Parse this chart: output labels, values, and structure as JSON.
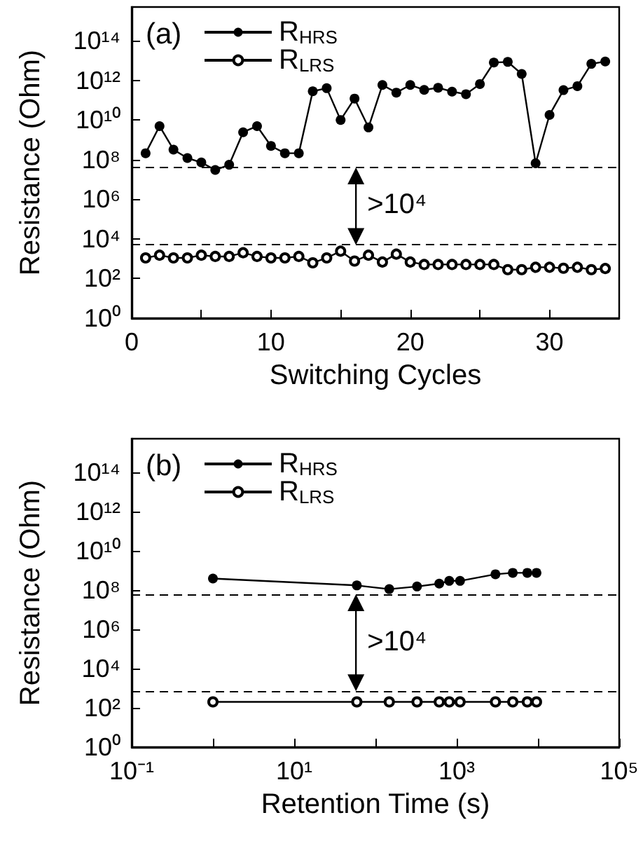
{
  "chart_data": [
    {
      "type": "line",
      "title": "(a)",
      "xlabel": "Switching Cycles",
      "ylabel": "Resistance (Ohm)",
      "x": [
        1,
        2,
        3,
        4,
        5,
        6,
        7,
        8,
        9,
        10,
        11,
        12,
        13,
        14,
        15,
        16,
        17,
        18,
        19,
        20,
        21,
        22,
        23,
        24,
        25,
        26,
        27,
        28,
        29,
        30,
        31,
        32,
        33,
        34
      ],
      "series": [
        {
          "name": "R$_{HRS}$",
          "color": "#000000",
          "values": [
            210000000.0,
            4900000000.0,
            320000000.0,
            120000000.0,
            72000000.0,
            30000000.0,
            55000000.0,
            2400000000.0,
            4900000000.0,
            490000000.0,
            210000000.0,
            210000000.0,
            280000000000.0,
            400000000000.0,
            10000000000.0,
            120000000000.0,
            4200000000.0,
            580000000000.0,
            240000000000.0,
            580000000000.0,
            330000000000.0,
            420000000000.0,
            270000000000.0,
            200000000000.0,
            650000000000.0,
            7900000000000.0,
            8500000000000.0,
            2100000000000.0,
            65000000.0,
            18000000000.0,
            320000000000.0,
            510000000000.0,
            6800000000000.0,
            8900000000000.0
          ]
        },
        {
          "name": "R$_{LRS}$",
          "color": "#000000",
          "values": [
            1100.0,
            1500.0,
            1100.0,
            1100.0,
            1500.0,
            1300.0,
            1300.0,
            2000.0,
            1300.0,
            1100.0,
            1100.0,
            1300.0,
            620.0,
            1100.0,
            2400.0,
            760.0,
            1500.0,
            680.0,
            1700.0,
            680.0,
            510.0,
            510.0,
            510.0,
            510.0,
            510.0,
            510.0,
            280.0,
            280.0,
            370.0,
            370.0,
            330.0,
            370.0,
            280.0,
            320.0
          ]
        }
      ],
      "xlim": [
        0,
        35
      ],
      "xticks": [
        0,
        {
          "value": 5,
          "label": null
        },
        10,
        {
          "value": 15,
          "label": null
        },
        20,
        {
          "value": 25,
          "label": null
        },
        30
      ],
      "ylim": [
        1,
        5000000000000000.0
      ],
      "yticks": [
        {
          "value": 1,
          "label": "10⁰"
        },
        {
          "value": 100.0,
          "label": "10²"
        },
        {
          "value": 10000.0,
          "label": "10⁴"
        },
        {
          "value": 1000000.0,
          "label": "10⁶"
        },
        {
          "value": 100000000.0,
          "label": "10⁸"
        },
        {
          "value": 10000000000.0,
          "label": "10¹⁰"
        },
        {
          "value": 1000000000000.0,
          "label": "10¹²"
        },
        {
          "value": 100000000000000.0,
          "label": "10¹⁴"
        }
      ],
      "log": "y",
      "grid": false,
      "legend": "top left",
      "marker": "circle",
      "ref_lines": [
        {
          "axis": "y",
          "value": 40000000.0,
          "line_style": "dashed"
        },
        {
          "axis": "y",
          "value": 5000.0,
          "line_style": "dashed"
        }
      ],
      "annotations": [
        ">10⁴"
      ]
    },
    {
      "type": "line",
      "title": "(b)",
      "xlabel": "Retention Time (s)",
      "ylabel": "Resistance (Ohm)",
      "x": [
        1,
        59,
        148,
        325,
        610,
        810,
        1100,
        3000,
        4900,
        7400,
        9600
      ],
      "series": [
        {
          "name": "R$_{HRS}$",
          "color": "#000000",
          "values": [
            380000000.0,
            170000000.0,
            110000000.0,
            150000000.0,
            210000000.0,
            290000000.0,
            290000000.0,
            630000000.0,
            740000000.0,
            740000000.0,
            740000000.0
          ]
        },
        {
          "name": "R$_{LRS}$",
          "color": "#000000",
          "values": [
            200,
            200,
            200,
            200,
            200,
            200,
            200,
            200,
            200,
            200,
            200
          ]
        }
      ],
      "xlim": [
        0.1,
        100000.0
      ],
      "xticks": [
        {
          "value": 0.1,
          "label": "10⁻¹"
        },
        {
          "value": 1,
          "label": null
        },
        {
          "value": 10,
          "label": "10¹"
        },
        {
          "value": 100,
          "label": null
        },
        {
          "value": 1000,
          "label": "10³"
        },
        {
          "value": 10000,
          "label": null
        },
        {
          "value": 100000,
          "label": "10⁵"
        }
      ],
      "ylim": [
        1,
        5000000000000000.0
      ],
      "yticks": [
        {
          "value": 1,
          "label": "10⁰"
        },
        {
          "value": 100.0,
          "label": "10²"
        },
        {
          "value": 10000.0,
          "label": "10⁴"
        },
        {
          "value": 1000000.0,
          "label": "10⁶"
        },
        {
          "value": 100000000.0,
          "label": "10⁸"
        },
        {
          "value": 10000000000.0,
          "label": "10¹⁰"
        },
        {
          "value": 1000000000000.0,
          "label": "10¹²"
        },
        {
          "value": 100000000000000.0,
          "label": "10¹⁴"
        }
      ],
      "log": "xy",
      "grid": false,
      "legend": "top left",
      "marker": "circle",
      "ref_lines": [
        {
          "axis": "y",
          "value": 60000000.0,
          "line_style": "dashed"
        },
        {
          "axis": "y",
          "value": 700.0,
          "line_style": "dashed"
        }
      ],
      "annotations": [
        ">10⁴"
      ]
    }
  ]
}
